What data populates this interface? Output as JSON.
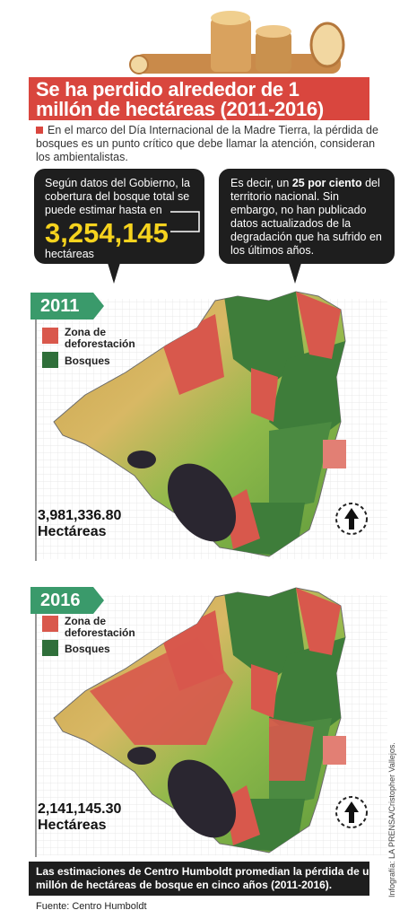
{
  "header": {
    "title_line1": "Se ha perdido alrededor de 1",
    "title_line2": "millón de hectáreas (2011-2016)"
  },
  "intro": "En el marco del Día Internacional de la Madre Tierra, la pérdida de bosques es un punto crítico que debe llamar la atención, consideran los ambientalistas.",
  "bubble_left": {
    "text": "Según datos del Gobierno, la cobertura del bosque total se puede estimar hasta en",
    "number": "3,254,145",
    "unit": "hectáreas"
  },
  "bubble_right": {
    "before": "Es decir, un",
    "bold": "25 por ciento",
    "after": "del territorio nacional. Sin embargo, no han publicado datos actualizados de la degradación que ha sufrido en los últimos años."
  },
  "maps": [
    {
      "year": "2011",
      "legend": [
        "Zona de deforestación",
        "Bosques"
      ],
      "hectares": "3,981,336.80",
      "unit": "Hectáreas"
    },
    {
      "year": "2016",
      "legend": [
        "Zona de deforestación",
        "Bosques"
      ],
      "hectares": "2,141,145.30",
      "unit": "Hectáreas"
    }
  ],
  "footer": {
    "summary": "Las estimaciones de Centro Humboldt promedian la pérdida de un millón de hectáreas de bosque en cinco años (2011-2016).",
    "source": "Fuente: Centro Humboldt",
    "credit": "Infografía: LA PRENSA/Cristopher Vallejos."
  }
}
